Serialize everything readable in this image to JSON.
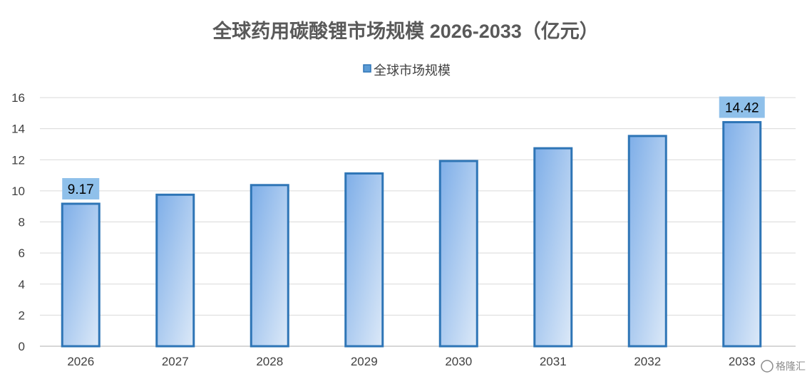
{
  "chart_data": {
    "type": "bar",
    "title": "全球药用碳酸锂市场规模 2026-2033（亿元）",
    "categories": [
      "2026",
      "2027",
      "2028",
      "2029",
      "2030",
      "2031",
      "2032",
      "2033"
    ],
    "series": [
      {
        "name": "全球市场规模",
        "values": [
          9.17,
          9.75,
          10.37,
          11.12,
          11.92,
          12.74,
          13.53,
          14.42
        ]
      }
    ],
    "data_labels": [
      {
        "index": 0,
        "text": "9.17"
      },
      {
        "index": 7,
        "text": "14.42"
      }
    ],
    "ylim": [
      0,
      16
    ],
    "yticks": [
      "0",
      "2",
      "4",
      "6",
      "8",
      "10",
      "12",
      "14",
      "16"
    ],
    "grid": true,
    "legend_position": "top-center",
    "colors": {
      "bar_border": "#2e75b6",
      "bar_gradient_start": "#7eaee8",
      "bar_gradient_end": "#dce9f8",
      "label_background": "#8fc0ea",
      "legend_swatch": "#5b9bd5"
    }
  },
  "watermark": {
    "text": "格隆汇"
  }
}
